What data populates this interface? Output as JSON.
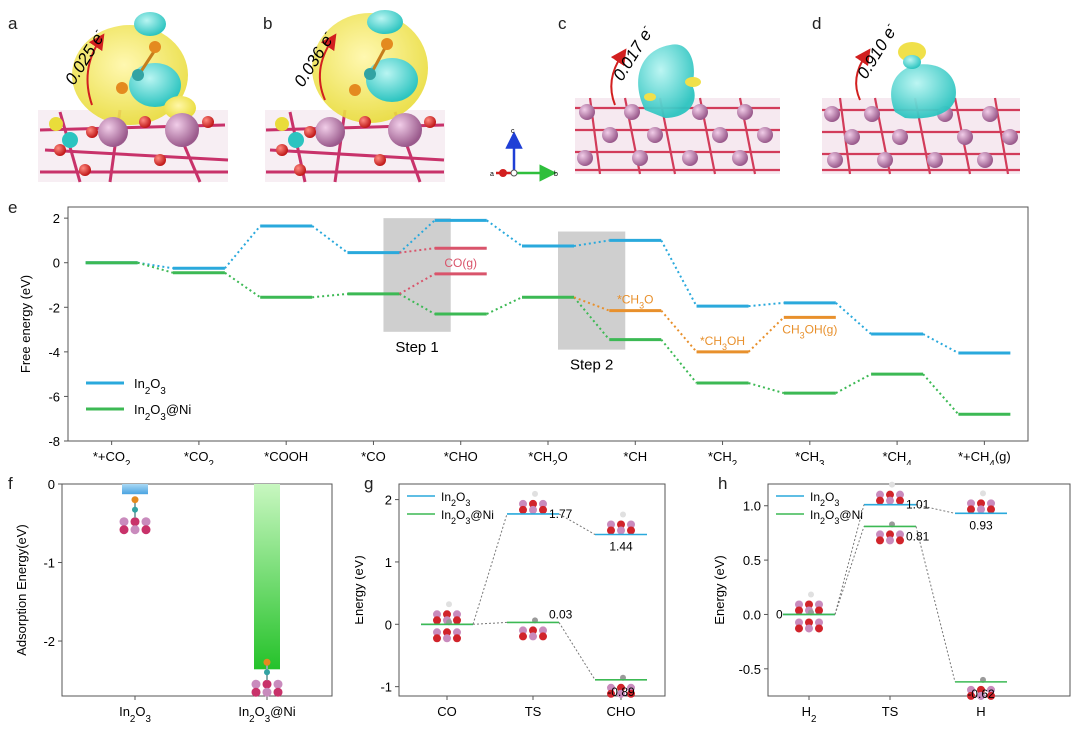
{
  "panels": {
    "a": {
      "letter": "a",
      "charge": "0.025 e",
      "sup": "-"
    },
    "b": {
      "letter": "b",
      "charge": "0.036 e",
      "sup": "-"
    },
    "c": {
      "letter": "c",
      "charge": "0.017 e",
      "sup": "-"
    },
    "d": {
      "letter": "d",
      "charge": "0.910 e",
      "sup": "-"
    },
    "axes": {
      "c": "c",
      "a": "a",
      "b": "b"
    },
    "e": {
      "letter": "e"
    },
    "f": {
      "letter": "f"
    },
    "g": {
      "letter": "g"
    },
    "h": {
      "letter": "h"
    }
  },
  "colors": {
    "in2o3": "#2aa9dc",
    "ni": "#3cb954",
    "co": "#d9546b",
    "ch3": "#e8902c",
    "step": "#cfcfcf"
  },
  "chart_data": [
    {
      "id": "e",
      "type": "line",
      "ylabel": "Free energy (eV)",
      "ylim": [
        -8,
        2.5
      ],
      "yticks": [
        2,
        0,
        -2,
        -4,
        -6,
        -8
      ],
      "categories": [
        "*+CO2",
        "*CO2",
        "*COOH",
        "*CO",
        "*CHO",
        "*CH2O",
        "*CH",
        "*CH2",
        "*CH3",
        "*CH4",
        "*+CH4(g)"
      ],
      "series": [
        {
          "name": "In2O3",
          "color": "#2aa9dc",
          "values": [
            0,
            -0.25,
            1.65,
            0.45,
            1.9,
            0.75,
            1.0,
            -1.95,
            -1.8,
            -3.2,
            -4.05
          ]
        },
        {
          "name": "In2O3@Ni",
          "color": "#3cb954",
          "values": [
            0,
            -0.45,
            -1.55,
            -1.4,
            -2.3,
            -1.55,
            -3.45,
            -5.4,
            -5.85,
            -5.0,
            -6.8
          ]
        }
      ],
      "extra_levels": [
        {
          "label": "CO(g)",
          "color": "#d9546b",
          "x": 4,
          "values": [
            0.65,
            -0.5
          ]
        },
        {
          "label": "*CH3O",
          "color": "#e8902c",
          "x": 6,
          "value": -2.15
        },
        {
          "label": "*CH3OH",
          "color": "#e8902c",
          "x": 7,
          "value": -4.0
        },
        {
          "label": "CH3OH(g)",
          "color": "#e8902c",
          "x": 8,
          "value": -2.45
        }
      ],
      "steps": [
        {
          "label": "Step 1",
          "x_range": [
            3.5,
            4.5
          ],
          "y_range": [
            -3.1,
            2.0
          ]
        },
        {
          "label": "Step 2",
          "x_range": [
            5.5,
            6.5
          ],
          "y_range": [
            -3.9,
            1.4
          ]
        }
      ],
      "legend": "bottom-left"
    },
    {
      "id": "f",
      "type": "bar",
      "ylabel": "Adsorption Energy(eV)",
      "ylim": [
        -2.7,
        0
      ],
      "yticks": [
        0,
        -1,
        -2
      ],
      "categories": [
        "In2O3",
        "In2O3@Ni"
      ],
      "values": [
        -0.13,
        -2.36
      ]
    },
    {
      "id": "g",
      "type": "line",
      "ylabel": "Energy (eV)",
      "ylim": [
        -1.15,
        2.25
      ],
      "yticks": [
        2,
        1,
        0,
        -1
      ],
      "categories": [
        "CO",
        "TS",
        "CHO"
      ],
      "series": [
        {
          "name": "In2O3",
          "color": "#2aa9dc",
          "values": [
            0,
            1.77,
            1.44
          ]
        },
        {
          "name": "In2O3@Ni",
          "color": "#3cb954",
          "values": [
            0,
            0.03,
            -0.89
          ]
        }
      ],
      "labels": [
        "1.77",
        "1.44",
        "0.03",
        "-0.89"
      ],
      "legend": "top-left"
    },
    {
      "id": "h",
      "type": "line",
      "ylabel": "Energy (eV)",
      "ylim": [
        -0.75,
        1.2
      ],
      "yticks": [
        1.0,
        0.5,
        0.0,
        -0.5
      ],
      "categories": [
        "H2",
        "TS",
        "H"
      ],
      "series": [
        {
          "name": "In2O3",
          "color": "#2aa9dc",
          "values": [
            0,
            1.01,
            0.93
          ]
        },
        {
          "name": "In2O3@Ni",
          "color": "#3cb954",
          "values": [
            0,
            0.81,
            -0.62
          ]
        }
      ],
      "labels": [
        "0",
        "1.01",
        "0.93",
        "0.81",
        "-0.62"
      ],
      "legend": "top-left"
    }
  ]
}
